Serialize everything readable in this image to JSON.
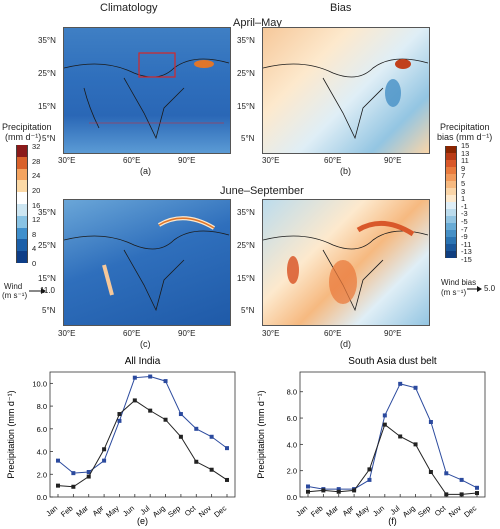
{
  "header": {
    "left_title": "Climatology",
    "right_title": "Bias",
    "season_top": "April–May",
    "season_bottom": "June–September"
  },
  "maps": {
    "lat_ticks": [
      "35°N",
      "25°N",
      "15°N",
      "5°N"
    ],
    "lon_ticks": [
      "30°E",
      "60°E",
      "90°E"
    ],
    "panel_labels": [
      "(a)",
      "(b)",
      "(c)",
      "(d)"
    ]
  },
  "colorbars": {
    "precip": {
      "title": "Precipitation",
      "units": "(mm d⁻¹)",
      "ticks": [
        "32",
        "28",
        "24",
        "20",
        "16",
        "12",
        "8",
        "4",
        "0"
      ],
      "colors": [
        "#8b1a1a",
        "#d9622b",
        "#f4a460",
        "#fcd9a6",
        "#ffffff",
        "#cde6f2",
        "#89c3e4",
        "#3f8fcc",
        "#1b5fa8",
        "#0d3d87"
      ]
    },
    "bias": {
      "title": "Precipitation",
      "units": "bias (mm d⁻¹)",
      "ticks": [
        "15",
        "13",
        "11",
        "9",
        "7",
        "5",
        "3",
        "1",
        "-1",
        "-3",
        "-5",
        "-7",
        "-9",
        "-11",
        "-13",
        "-15"
      ],
      "colors": [
        "#8b2500",
        "#b93b16",
        "#d9582a",
        "#e97b3e",
        "#f19a5c",
        "#f6b980",
        "#fad5a8",
        "#fde9cd",
        "#dfeef6",
        "#bcdced",
        "#93c5e2",
        "#69abd5",
        "#4690c6",
        "#2b74b2",
        "#1a579a",
        "#103e7f"
      ]
    }
  },
  "wind_keys": {
    "wind": {
      "label": "Wind",
      "units": "(m s⁻¹)",
      "value": "11.0"
    },
    "bias": {
      "label": "Wind bias",
      "units": "(m s⁻¹)",
      "value": "5.0"
    }
  },
  "chart_data": [
    {
      "type": "line",
      "title": "All India",
      "ylabel": "Precipitation (mm d⁻¹)",
      "categories": [
        "Jan",
        "Feb",
        "Mar",
        "Apr",
        "May",
        "Jun",
        "Jul",
        "Aug",
        "Sep",
        "Oct",
        "Nov",
        "Dec"
      ],
      "ylim": [
        0,
        11
      ],
      "yticks": [
        "0.0",
        "2.0",
        "4.0",
        "6.0",
        "8.0",
        "10.0"
      ],
      "series": [
        {
          "color": "#2b4a9e",
          "values": [
            3.2,
            2.1,
            2.2,
            3.2,
            6.7,
            10.5,
            10.6,
            10.2,
            7.3,
            6.0,
            5.3,
            4.3
          ]
        },
        {
          "color": "#222222",
          "values": [
            1.0,
            0.9,
            1.8,
            4.2,
            7.3,
            8.5,
            7.6,
            6.8,
            5.3,
            3.1,
            2.4,
            1.5
          ]
        }
      ],
      "panel_label": "(e)"
    },
    {
      "type": "line",
      "title": "South Asia dust belt",
      "ylabel": "Precipitation (mm d⁻¹)",
      "categories": [
        "Jan",
        "Feb",
        "Mar",
        "Apr",
        "May",
        "Jun",
        "Jul",
        "Aug",
        "Sep",
        "Oct",
        "Nov",
        "Dec"
      ],
      "ylim": [
        0,
        9.5
      ],
      "yticks": [
        "0.0",
        "2.0",
        "4.0",
        "6.0",
        "8.0"
      ],
      "series": [
        {
          "color": "#2b4a9e",
          "values": [
            0.8,
            0.6,
            0.6,
            0.6,
            1.3,
            6.2,
            8.6,
            8.3,
            5.7,
            1.8,
            1.3,
            0.7
          ]
        },
        {
          "color": "#222222",
          "values": [
            0.4,
            0.5,
            0.4,
            0.5,
            2.1,
            5.5,
            4.6,
            4.0,
            1.9,
            0.2,
            0.2,
            0.3
          ]
        }
      ],
      "panel_label": "(f)"
    }
  ]
}
